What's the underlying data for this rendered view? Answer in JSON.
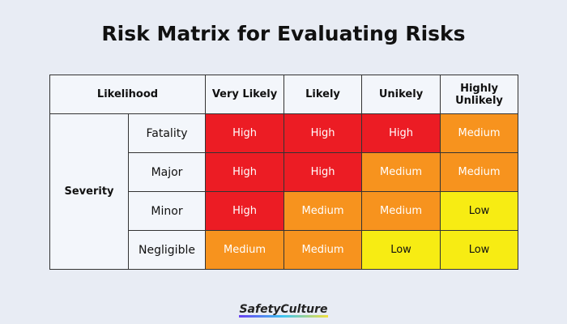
{
  "title": "Risk Matrix for Evaluating Risks",
  "likelihood_label": "Likelihood",
  "severity_label": "Severity",
  "columns": [
    "Very Likely",
    "Likely",
    "Unikely",
    "Highly Unlikely"
  ],
  "rows": [
    {
      "label": "Fatality",
      "cells": [
        "High",
        "High",
        "High",
        "Medium"
      ]
    },
    {
      "label": "Major",
      "cells": [
        "High",
        "High",
        "Medium",
        "Medium"
      ]
    },
    {
      "label": "Minor",
      "cells": [
        "High",
        "Medium",
        "Medium",
        "Low"
      ]
    },
    {
      "label": "Negligible",
      "cells": [
        "Medium",
        "Medium",
        "Low",
        "Low"
      ]
    }
  ],
  "colors": {
    "High": "#ec1c24",
    "Medium": "#f7931e",
    "Low": "#f7ec13"
  },
  "logo": "SafetyCulture"
}
